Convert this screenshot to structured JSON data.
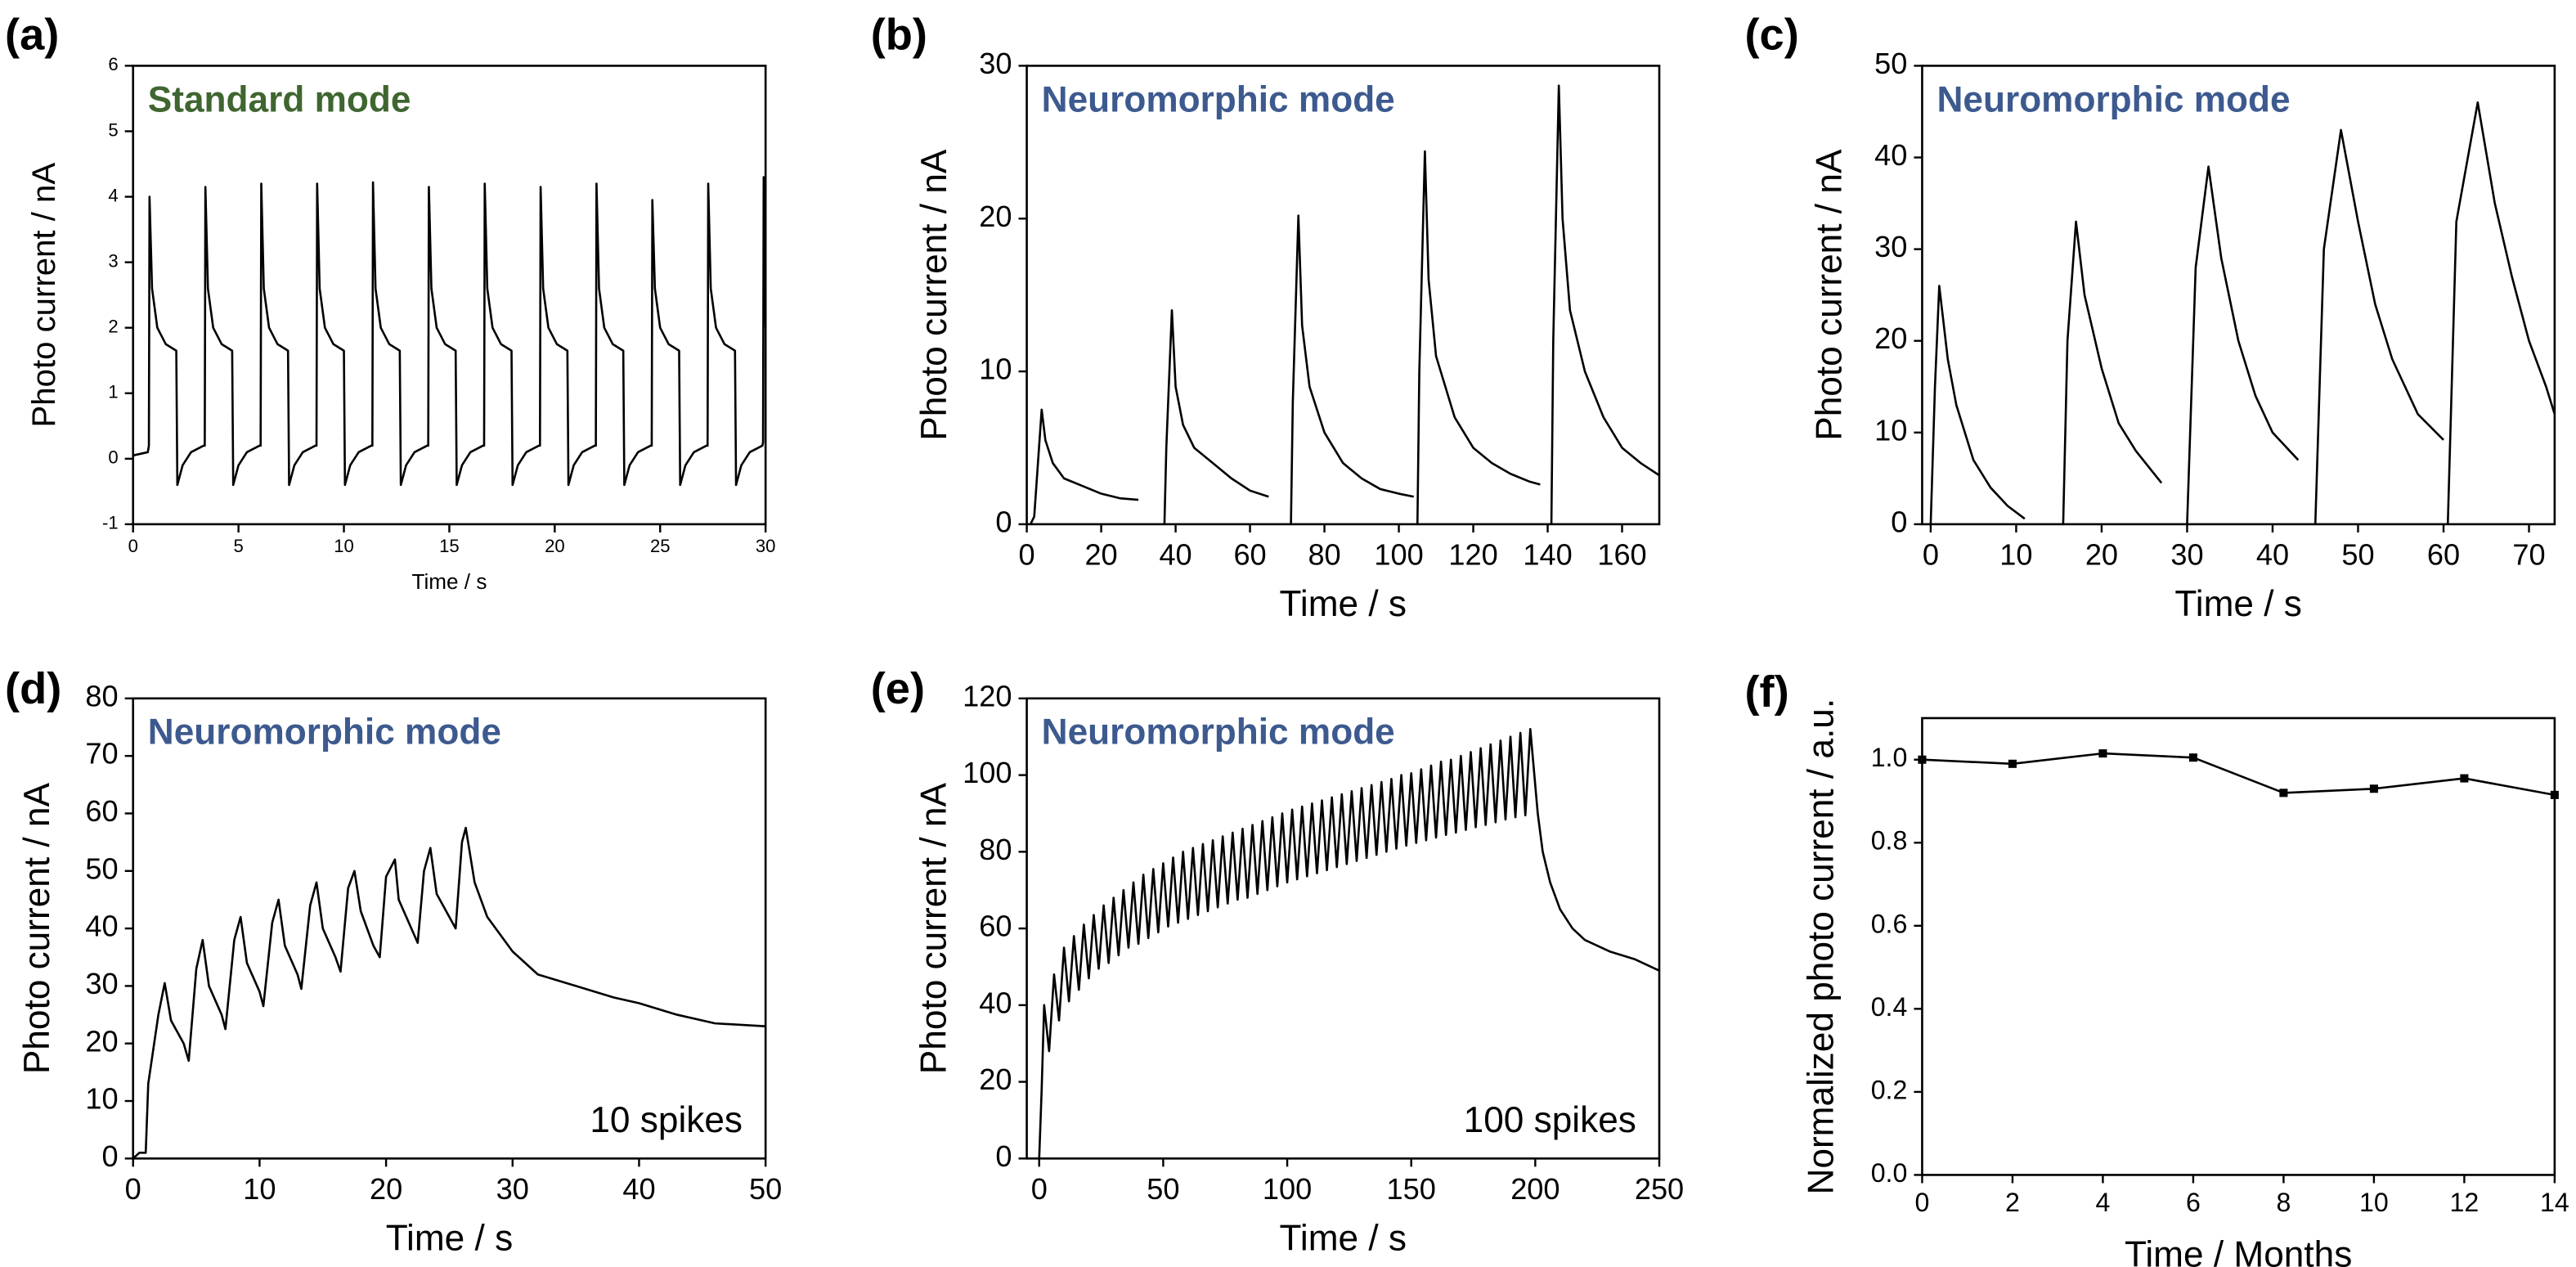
{
  "chart_data": [
    {
      "type": "line",
      "label": "(a)",
      "annotation": "Standard mode",
      "annotation_color": "#3f6630",
      "xlabel": "Time / s",
      "ylabel": "Photo current / nA",
      "color": "#000000",
      "xlim": [
        0,
        30
      ],
      "xticks": [
        0,
        5,
        10,
        15,
        20,
        25,
        30
      ],
      "ylim": [
        -1,
        6
      ],
      "yticks": [
        -1,
        0,
        1,
        2,
        3,
        4,
        5,
        6
      ],
      "x": [
        0,
        0.7,
        0.75,
        0.78,
        0.9,
        1.15,
        1.55,
        2.05,
        2.1,
        2.35,
        2.75,
        3.35,
        3.4,
        3.43,
        3.55,
        3.8,
        4.2,
        4.7,
        4.75,
        5.0,
        5.4,
        6.0,
        6.05,
        6.08,
        6.2,
        6.45,
        6.85,
        7.35,
        7.4,
        7.65,
        8.05,
        8.65,
        8.7,
        8.73,
        8.85,
        9.1,
        9.5,
        10.0,
        10.05,
        10.3,
        10.7,
        11.3,
        11.35,
        11.38,
        11.5,
        11.75,
        12.15,
        12.65,
        12.7,
        12.95,
        13.35,
        13.95,
        14.0,
        14.03,
        14.15,
        14.4,
        14.8,
        15.3,
        15.35,
        15.6,
        16.0,
        16.6,
        16.65,
        16.68,
        16.8,
        17.05,
        17.45,
        17.95,
        18.0,
        18.25,
        18.65,
        19.25,
        19.3,
        19.33,
        19.45,
        19.7,
        20.1,
        20.6,
        20.65,
        20.9,
        21.3,
        21.9,
        21.95,
        21.98,
        22.1,
        22.35,
        22.75,
        23.25,
        23.3,
        23.55,
        23.95,
        24.55,
        24.6,
        24.63,
        24.75,
        25.0,
        25.4,
        25.9,
        25.95,
        26.2,
        26.6,
        27.2,
        27.25,
        27.28,
        27.4,
        27.65,
        28.05,
        28.55,
        28.6,
        28.85,
        29.25,
        29.85,
        29.88,
        29.91,
        30
      ],
      "values": [
        0.05,
        0.1,
        0.2,
        4.0,
        2.6,
        2.0,
        1.75,
        1.65,
        -0.4,
        -0.1,
        0.1,
        0.2,
        0.2,
        4.15,
        2.6,
        2.0,
        1.75,
        1.65,
        -0.4,
        -0.1,
        0.1,
        0.2,
        0.2,
        4.2,
        2.6,
        2.0,
        1.75,
        1.65,
        -0.4,
        -0.1,
        0.1,
        0.2,
        0.2,
        4.2,
        2.6,
        2.0,
        1.75,
        1.65,
        -0.4,
        -0.1,
        0.1,
        0.2,
        0.2,
        4.22,
        2.6,
        2.0,
        1.75,
        1.65,
        -0.4,
        -0.1,
        0.1,
        0.2,
        0.2,
        4.15,
        2.6,
        2.0,
        1.75,
        1.65,
        -0.4,
        -0.1,
        0.1,
        0.2,
        0.2,
        4.2,
        2.6,
        2.0,
        1.75,
        1.65,
        -0.4,
        -0.1,
        0.1,
        0.2,
        0.2,
        4.15,
        2.6,
        2.0,
        1.75,
        1.65,
        -0.4,
        -0.1,
        0.1,
        0.2,
        0.2,
        4.2,
        2.6,
        2.0,
        1.75,
        1.65,
        -0.4,
        -0.1,
        0.1,
        0.2,
        0.2,
        3.95,
        2.6,
        2.0,
        1.75,
        1.65,
        -0.4,
        -0.1,
        0.1,
        0.2,
        0.2,
        4.2,
        2.6,
        2.0,
        1.75,
        1.65,
        -0.4,
        -0.1,
        0.1,
        0.2,
        0.25,
        4.3,
        2.0
      ]
    },
    {
      "type": "line",
      "label": "(b)",
      "annotation": "Neuromorphic mode",
      "annotation_color": "#3d5a8f",
      "xlabel": "Time / s",
      "ylabel": "Photo current / nA",
      "color": "#000000",
      "xlim": [
        0,
        170
      ],
      "xticks": [
        0,
        20,
        40,
        60,
        80,
        100,
        120,
        140,
        160
      ],
      "ylim": [
        0,
        30
      ],
      "yticks": [
        0,
        10,
        20,
        30
      ],
      "x": [
        1,
        2,
        3,
        4,
        5,
        7,
        10,
        15,
        20,
        25,
        30,
        33,
        37,
        37.5,
        39,
        40,
        42,
        45,
        50,
        55,
        60,
        65,
        68,
        71,
        71.5,
        73,
        74,
        76,
        80,
        85,
        90,
        95,
        100,
        104,
        104.5,
        105,
        105.5,
        107,
        108,
        110,
        115,
        120,
        125,
        130,
        135,
        138,
        139.5,
        141,
        141.5,
        143,
        144,
        146,
        150,
        155,
        160,
        165,
        170
      ],
      "values": [
        0,
        0.5,
        4,
        7.5,
        5.5,
        4,
        3,
        2.5,
        2,
        1.7,
        1.6,
        null,
        0,
        5,
        14,
        9,
        6.5,
        5,
        4,
        3,
        2.2,
        1.8,
        null,
        0,
        8,
        20.2,
        13,
        9,
        6,
        4,
        3,
        2.3,
        2,
        1.8,
        null,
        0,
        10,
        24.4,
        16,
        11,
        7,
        5,
        4,
        3.3,
        2.8,
        2.6,
        null,
        0,
        12,
        28.7,
        20,
        14,
        10,
        7,
        5,
        4,
        3.2
      ]
    },
    {
      "type": "line",
      "label": "(c)",
      "annotation": "Neuromorphic mode",
      "annotation_color": "#3d5a8f",
      "xlabel": "Time / s",
      "ylabel": "Photo current / nA",
      "color": "#000000",
      "xlim": [
        -1,
        73
      ],
      "xticks": [
        0,
        10,
        20,
        30,
        40,
        50,
        60,
        70
      ],
      "ylim": [
        0,
        50
      ],
      "yticks": [
        0,
        10,
        20,
        30,
        40,
        50
      ],
      "x": [
        0,
        0.5,
        1,
        2,
        3,
        5,
        7,
        9,
        11,
        13,
        15.5,
        16,
        17,
        18,
        20,
        22,
        24,
        27,
        28.5,
        30,
        31,
        32.5,
        34,
        36,
        38,
        40,
        43,
        44,
        45,
        46,
        48,
        50,
        52,
        54,
        57,
        60,
        60.3,
        60.5,
        61.5,
        64,
        66,
        68,
        70,
        72,
        73
      ],
      "values": [
        0,
        15,
        26,
        18,
        13,
        7,
        4,
        2,
        0.6,
        null,
        0,
        20,
        33,
        25,
        17,
        11,
        8,
        4.5,
        null,
        0,
        28,
        39,
        29,
        20,
        14,
        10,
        7,
        null,
        0,
        30,
        43,
        33,
        24,
        18,
        12,
        9.2,
        null,
        0,
        33,
        46,
        35,
        27,
        20,
        15,
        12
      ]
    },
    {
      "type": "line",
      "label": "(d)",
      "annotation": "Neuromorphic mode",
      "annotation_color": "#3d5a8f",
      "note": "10 spikes",
      "xlabel": "Time / s",
      "ylabel": "Photo current / nA",
      "color": "#000000",
      "xlim": [
        0,
        50
      ],
      "xticks": [
        0,
        10,
        20,
        30,
        40,
        50
      ],
      "ylim": [
        0,
        80
      ],
      "yticks": [
        0,
        10,
        20,
        30,
        40,
        50,
        60,
        70,
        80
      ],
      "x": [
        0,
        0.5,
        1,
        1.2,
        2,
        2.5,
        3,
        4,
        4.4,
        5,
        5.5,
        6,
        7,
        7.3,
        8,
        8.5,
        9,
        10,
        10.3,
        11,
        11.5,
        12,
        13,
        13.3,
        14,
        14.5,
        15,
        16,
        16.4,
        17,
        17.5,
        18,
        19,
        19.5,
        20,
        20.7,
        21,
        22,
        22.5,
        23,
        23.5,
        24,
        25,
        25.5,
        26,
        26.3,
        27,
        28,
        30,
        32,
        35,
        38,
        40,
        43,
        46,
        50
      ],
      "values": [
        0,
        1,
        1,
        13,
        25,
        30.5,
        24,
        20,
        17,
        33,
        38,
        30,
        25,
        22.5,
        38,
        42,
        34,
        29,
        26.5,
        41,
        45,
        37,
        32,
        29.5,
        44,
        48,
        40,
        35,
        32.5,
        47,
        50,
        43,
        37,
        35,
        49,
        52,
        45,
        40,
        37.5,
        50,
        54,
        46,
        42,
        40,
        55,
        57.5,
        48,
        42,
        36,
        32,
        30,
        28,
        27,
        25,
        23.5,
        23
      ]
    },
    {
      "type": "line",
      "label": "(e)",
      "annotation": "Neuromorphic mode",
      "annotation_color": "#3d5a8f",
      "note": "100 spikes",
      "xlabel": "Time / s",
      "ylabel": "Photo current / nA",
      "color": "#000000",
      "xlim": [
        -5,
        250
      ],
      "xticks": [
        0,
        50,
        100,
        150,
        200,
        250
      ],
      "ylim": [
        0,
        120
      ],
      "yticks": [
        0,
        20,
        40,
        60,
        80,
        100,
        120
      ],
      "x": [
        0,
        1,
        2,
        4,
        6,
        8,
        10,
        12,
        14,
        16,
        18,
        20,
        22,
        24,
        26,
        28,
        30,
        32,
        34,
        36,
        38,
        40,
        42,
        44,
        46,
        48,
        50,
        52,
        54,
        56,
        58,
        60,
        62,
        64,
        66,
        68,
        70,
        72,
        74,
        76,
        78,
        80,
        82,
        84,
        86,
        88,
        90,
        92,
        94,
        96,
        98,
        100,
        102,
        104,
        106,
        108,
        110,
        112,
        114,
        116,
        118,
        120,
        122,
        124,
        126,
        128,
        130,
        132,
        134,
        136,
        138,
        140,
        142,
        144,
        146,
        148,
        150,
        152,
        154,
        156,
        158,
        160,
        162,
        164,
        166,
        168,
        170,
        172,
        174,
        176,
        178,
        180,
        182,
        184,
        186,
        188,
        190,
        192,
        194,
        196,
        198,
        201,
        203,
        206,
        210,
        215,
        220,
        230,
        240,
        250
      ],
      "values": [
        0,
        18,
        40,
        28,
        48,
        36,
        55,
        41,
        58,
        44,
        61,
        47,
        63.5,
        49.5,
        66,
        51,
        68,
        53,
        70,
        55,
        72,
        56,
        74,
        57.5,
        75.5,
        59,
        77,
        60.5,
        78.5,
        61.5,
        80,
        62.5,
        81,
        63.5,
        82,
        64.5,
        83,
        65.5,
        84,
        66.5,
        85,
        67.5,
        86,
        68,
        87,
        69,
        88,
        70,
        89,
        71,
        90,
        72,
        91,
        72.8,
        91.8,
        73.6,
        92.6,
        74.4,
        93.4,
        75.2,
        94.2,
        76,
        95,
        76.8,
        95.8,
        77.6,
        96.6,
        78.4,
        97.4,
        79.2,
        98.2,
        80,
        99,
        80.8,
        100,
        81.6,
        100.5,
        82.3,
        101.5,
        83,
        102.5,
        83.7,
        103.5,
        84.4,
        104,
        85,
        105,
        85.7,
        106,
        86.4,
        107,
        87,
        108,
        87.7,
        109,
        88.4,
        110,
        89,
        111,
        89.5,
        112,
        90,
        80,
        72,
        65,
        60,
        57,
        54,
        52,
        49
      ]
    },
    {
      "type": "line",
      "label": "(f)",
      "marker": "square",
      "xlabel": "Time / Months",
      "ylabel": "Normalized photo current / a.u.",
      "color": "#000000",
      "xlim": [
        0,
        14
      ],
      "xticks": [
        0,
        2,
        4,
        6,
        8,
        10,
        12,
        14
      ],
      "ylim": [
        0,
        1.1
      ],
      "yticks": [
        {
          "value": 0,
          "label": "0.0"
        },
        0.2,
        0.4,
        0.6,
        0.8,
        {
          "value": 1,
          "label": "1.0"
        }
      ],
      "x": [
        0,
        2,
        4,
        6,
        8,
        10,
        12,
        14
      ],
      "values": [
        1.0,
        0.99,
        1.015,
        1.005,
        0.92,
        0.93,
        0.955,
        0.915
      ]
    }
  ]
}
